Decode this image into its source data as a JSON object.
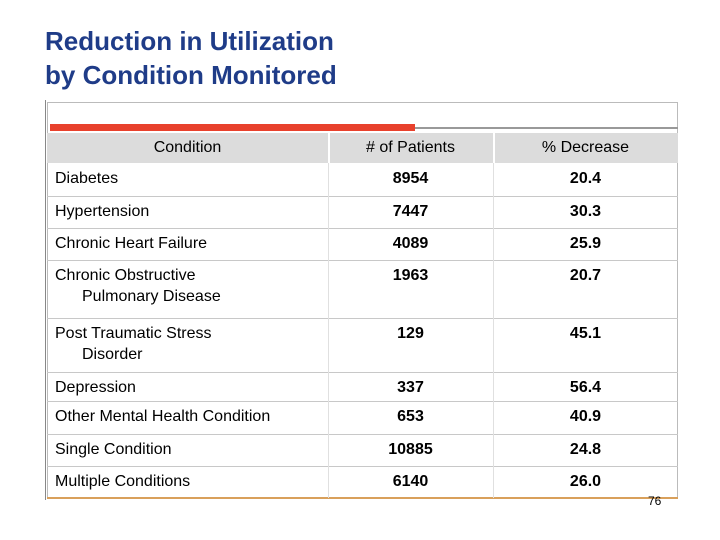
{
  "header": {
    "title": [
      "Reduction in Utilization",
      "by Condition Monitored"
    ]
  },
  "table": {
    "columns": [
      "Condition",
      "# of Patients",
      "% Decrease"
    ],
    "rows": [
      [
        [
          "Diabetes"
        ],
        8954,
        "20.4"
      ],
      [
        [
          "Hypertension"
        ],
        7447,
        "30.3"
      ],
      [
        [
          "Chronic Heart Failure"
        ],
        4089,
        "25.9"
      ],
      [
        [
          "Chronic Obstructive",
          "Pulmonary Disease"
        ],
        1963,
        "20.7"
      ],
      [
        [
          "Post Traumatic Stress",
          "Disorder"
        ],
        129,
        "45.1"
      ],
      [
        [
          "Depression"
        ],
        337,
        "56.4"
      ],
      [
        [
          "Other Mental Health Condition"
        ],
        653,
        "40.9"
      ],
      [
        [
          "Single Condition"
        ],
        10885,
        "24.8"
      ],
      [
        [
          "Multiple Conditions"
        ],
        6140,
        "26.0"
      ]
    ]
  },
  "footer": {
    "page_number": 76
  }
}
